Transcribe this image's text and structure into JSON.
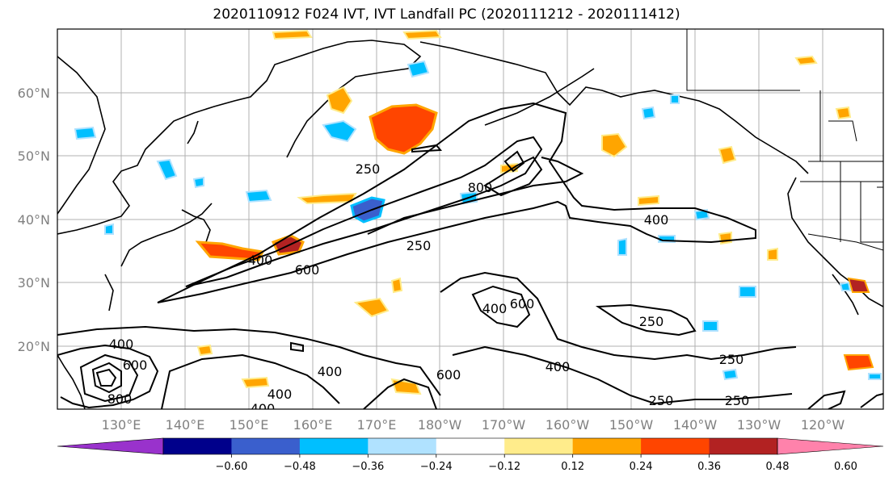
{
  "title": "2020110912 F024 IVT, IVT Landfall PC (2020111212 - 2020111412)",
  "lat_labels": [
    "60°N",
    "50°N",
    "40°N",
    "30°N",
    "20°N"
  ],
  "lon_labels": [
    "130°E",
    "140°E",
    "150°E",
    "160°E",
    "170°E",
    "180°W",
    "170°W",
    "160°W",
    "150°W",
    "140°W",
    "130°W",
    "120°W"
  ],
  "contour_labels": [
    "250",
    "250",
    "250",
    "250",
    "250",
    "250",
    "400",
    "400",
    "400",
    "400",
    "400",
    "400",
    "400",
    "400",
    "600",
    "600",
    "600",
    "600",
    "800",
    "800"
  ],
  "colorbar": {
    "colors": [
      "#9932cc",
      "#00008b",
      "#3a5fcd",
      "#00bfff",
      "#b0e2ff",
      "#ffffff",
      "#ffec8b",
      "#ffa500",
      "#ff4500",
      "#b22222",
      "#ff82ab"
    ],
    "ticks": [
      "−0.60",
      "−0.48",
      "−0.36",
      "−0.24",
      "−0.12",
      "0.12",
      "0.24",
      "0.36",
      "0.48",
      "0.60"
    ]
  }
}
